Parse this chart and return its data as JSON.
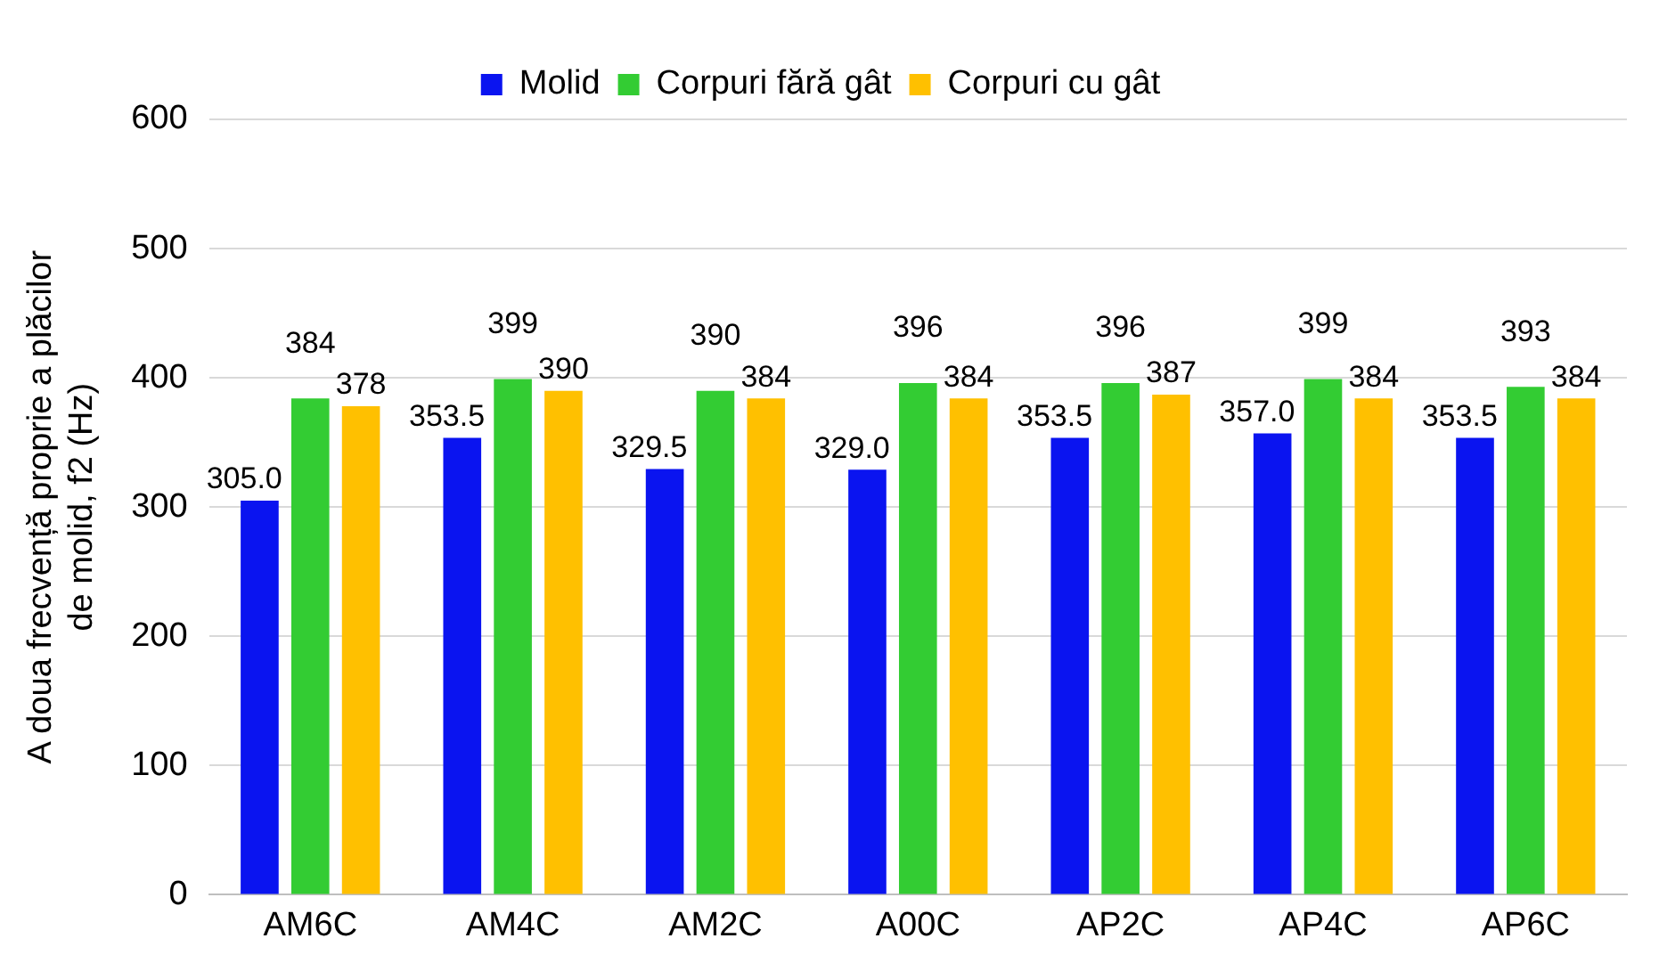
{
  "chart_data": {
    "type": "bar",
    "ylabel": "A doua frecvență proprie a plăcilor\nde molid, f2 (Hz)",
    "categories": [
      "AM6C",
      "AM4C",
      "AM2C",
      "A00C",
      "AP2C",
      "AP4C",
      "AP6C"
    ],
    "series": [
      {
        "name": "Molid",
        "color": "#0a14f0",
        "values": [
          305.0,
          353.5,
          329.5,
          329.0,
          353.5,
          357.0,
          353.5
        ],
        "value_labels": [
          "305.0",
          "353.5",
          "329.5",
          "329.0",
          "353.5",
          "357.0",
          "353.5"
        ]
      },
      {
        "name": "Corpuri fără gât",
        "color": "#33cc33",
        "values": [
          384,
          399,
          390,
          396,
          396,
          399,
          393
        ],
        "value_labels": [
          "384",
          "399",
          "390",
          "396",
          "396",
          "399",
          "393"
        ]
      },
      {
        "name": "Corpuri cu gât",
        "color": "#ffc000",
        "values": [
          378,
          390,
          384,
          384,
          387,
          384,
          384
        ],
        "value_labels": [
          "378",
          "390",
          "384",
          "384",
          "387",
          "384",
          "384"
        ]
      }
    ],
    "ylim": [
      0,
      600
    ],
    "yticks": [
      0,
      100,
      200,
      300,
      400,
      500,
      600
    ],
    "grid": "y",
    "legend": "top"
  }
}
